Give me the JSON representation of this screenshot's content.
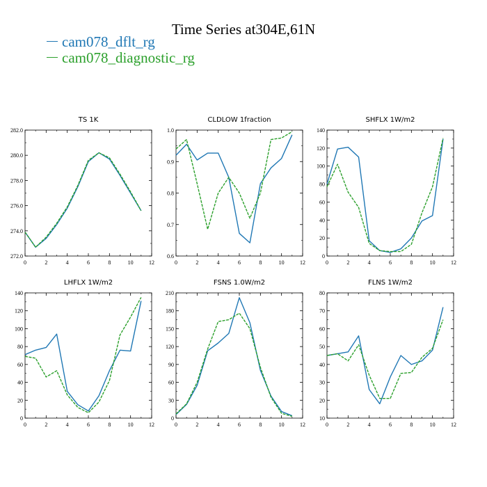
{
  "title": "Time Series at304E,61N",
  "legend": [
    {
      "label": "cam078_dflt_rg",
      "color": "#1f77b4",
      "dash": false
    },
    {
      "label": "cam078_diagnostic_rg",
      "color": "#2ca02c",
      "dash": true
    }
  ],
  "chart_data": [
    {
      "type": "line",
      "title": "TS   1K",
      "x": [
        0,
        1,
        2,
        3,
        4,
        5,
        6,
        7,
        8,
        9,
        10,
        11
      ],
      "xlim": [
        0,
        12
      ],
      "xticks": [
        0,
        2,
        4,
        6,
        8,
        10,
        12
      ],
      "ylim": [
        272.0,
        282.0
      ],
      "yticks": [
        "272.0",
        "274.0",
        "276.0",
        "278.0",
        "280.0",
        "282.0"
      ],
      "series": [
        {
          "name": "cam078_dflt_rg",
          "values": [
            273.9,
            272.7,
            273.4,
            274.5,
            275.8,
            277.5,
            279.5,
            280.2,
            279.7,
            278.4,
            277.0,
            275.6
          ]
        },
        {
          "name": "cam078_diagnostic_rg",
          "values": [
            273.9,
            272.7,
            273.5,
            274.6,
            275.9,
            277.6,
            279.6,
            280.2,
            279.8,
            278.5,
            277.1,
            275.6
          ]
        }
      ]
    },
    {
      "type": "line",
      "title": "CLDLOW   1fraction",
      "x": [
        0,
        1,
        2,
        3,
        4,
        5,
        6,
        7,
        8,
        9,
        10,
        11
      ],
      "xlim": [
        0,
        12
      ],
      "xticks": [
        0,
        2,
        4,
        6,
        8,
        10,
        12
      ],
      "ylim": [
        0.6,
        1.0
      ],
      "yticks": [
        "0.6",
        "0.7",
        "0.8",
        "0.9",
        "1.0"
      ],
      "series": [
        {
          "name": "cam078_dflt_rg",
          "values": [
            0.92,
            0.955,
            0.905,
            0.927,
            0.927,
            0.85,
            0.672,
            0.642,
            0.83,
            0.88,
            0.91,
            0.985
          ]
        },
        {
          "name": "cam078_diagnostic_rg",
          "values": [
            0.94,
            0.97,
            0.83,
            0.685,
            0.8,
            0.85,
            0.8,
            0.72,
            0.8,
            0.97,
            0.975,
            0.995
          ]
        }
      ]
    },
    {
      "type": "line",
      "title": "SHFLX   1W/m2",
      "x": [
        0,
        1,
        2,
        3,
        4,
        5,
        6,
        7,
        8,
        9,
        10,
        11
      ],
      "xlim": [
        0,
        12
      ],
      "xticks": [
        0,
        2,
        4,
        6,
        8,
        10,
        12
      ],
      "ylim": [
        0,
        140
      ],
      "yticks": [
        "0",
        "20",
        "40",
        "60",
        "80",
        "100",
        "120",
        "140"
      ],
      "series": [
        {
          "name": "cam078_dflt_rg",
          "values": [
            80,
            119,
            121,
            110,
            17,
            6,
            4,
            8,
            20,
            39,
            45,
            130
          ]
        },
        {
          "name": "cam078_diagnostic_rg",
          "values": [
            77,
            102,
            71,
            54,
            14,
            6,
            5,
            5,
            13,
            48,
            77,
            131
          ]
        }
      ]
    },
    {
      "type": "line",
      "title": "LHFLX   1W/m2",
      "x": [
        0,
        1,
        2,
        3,
        4,
        5,
        6,
        7,
        8,
        9,
        10,
        11
      ],
      "xlim": [
        0,
        12
      ],
      "xticks": [
        0,
        2,
        4,
        6,
        8,
        10,
        12
      ],
      "ylim": [
        0,
        140
      ],
      "yticks": [
        "0",
        "20",
        "40",
        "60",
        "80",
        "100",
        "120",
        "140"
      ],
      "series": [
        {
          "name": "cam078_dflt_rg",
          "values": [
            71,
            76,
            79,
            94,
            30,
            15,
            8,
            25,
            53,
            76,
            75,
            131
          ]
        },
        {
          "name": "cam078_diagnostic_rg",
          "values": [
            69,
            67,
            46,
            53,
            26,
            12,
            6,
            18,
            42,
            93,
            113,
            135
          ]
        }
      ]
    },
    {
      "type": "line",
      "title": "FSNS   1.0W/m2",
      "x": [
        0,
        1,
        2,
        3,
        4,
        5,
        6,
        7,
        8,
        9,
        10,
        11
      ],
      "xlim": [
        0,
        12
      ],
      "xticks": [
        0,
        2,
        4,
        6,
        8,
        10,
        12
      ],
      "ylim": [
        0,
        210
      ],
      "yticks": [
        "0",
        "30",
        "60",
        "90",
        "120",
        "150",
        "180",
        "210"
      ],
      "series": [
        {
          "name": "cam078_dflt_rg",
          "values": [
            6,
            23,
            55,
            113,
            126,
            142,
            202,
            160,
            80,
            37,
            11,
            4
          ]
        },
        {
          "name": "cam078_diagnostic_rg",
          "values": [
            7,
            24,
            60,
            116,
            162,
            165,
            176,
            150,
            85,
            35,
            8,
            3
          ]
        }
      ]
    },
    {
      "type": "line",
      "title": "FLNS   1W/m2",
      "x": [
        0,
        1,
        2,
        3,
        4,
        5,
        6,
        7,
        8,
        9,
        10,
        11
      ],
      "xlim": [
        0,
        12
      ],
      "xticks": [
        0,
        2,
        4,
        6,
        8,
        10,
        12
      ],
      "ylim": [
        10,
        80
      ],
      "yticks": [
        "10",
        "20",
        "30",
        "40",
        "50",
        "60",
        "70",
        "80"
      ],
      "series": [
        {
          "name": "cam078_dflt_rg",
          "values": [
            45,
            46,
            47,
            56,
            26,
            18,
            33,
            45,
            40,
            42,
            48,
            72
          ]
        },
        {
          "name": "cam078_diagnostic_rg",
          "values": [
            45,
            46,
            42,
            51,
            34,
            21,
            21,
            35,
            35.5,
            44,
            49,
            65
          ]
        }
      ]
    }
  ]
}
